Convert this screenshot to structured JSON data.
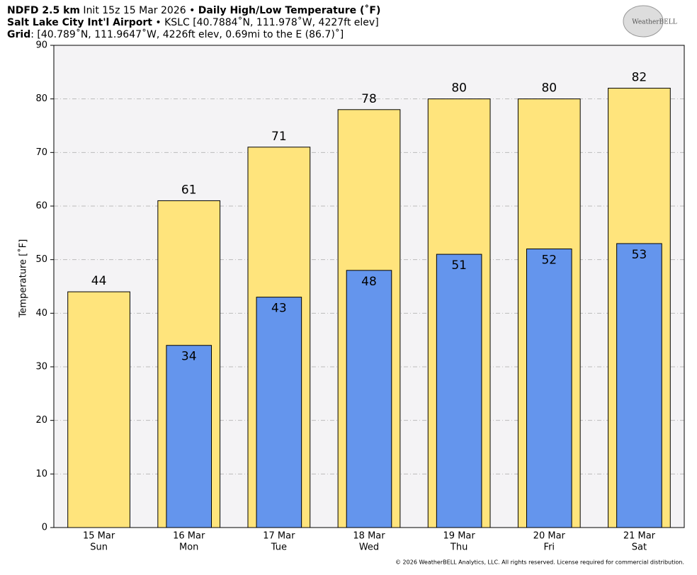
{
  "chart_data": {
    "type": "bar",
    "title_lines": [
      [
        "NDFD 2.5 km",
        " Init 15z 15 Mar 2026 • ",
        "Daily High/Low Temperature (˚F)"
      ],
      [
        "Salt Lake City Int'l Airport",
        " • KSLC [40.7884˚N, 111.978˚W, 4227ft elev]"
      ],
      [
        "Grid",
        ": [40.789˚N, 111.9647˚W, 4226ft elev, 0.69mi to the E (86.7)˚]"
      ]
    ],
    "logo": "WeatherBELL",
    "y_label": "Temperature [˚F]",
    "copyright": "© 2026 WeatherBELL Analytics, LLC. All rights reserved. License required for commercial distribution.",
    "categories": [
      "15 Mar",
      "16 Mar",
      "17 Mar",
      "18 Mar",
      "19 Mar",
      "20 Mar",
      "21 Mar"
    ],
    "weekdays": [
      "Sun",
      "Mon",
      "Tue",
      "Wed",
      "Thu",
      "Fri",
      "Sat"
    ],
    "series": [
      {
        "color": "#ffe47c",
        "values": [
          44,
          61,
          71,
          78,
          80,
          80,
          82
        ]
      },
      {
        "color": "#6495ed",
        "values": [
          null,
          34,
          43,
          48,
          51,
          52,
          53
        ]
      }
    ],
    "ylim": [
      0,
      90
    ],
    "yticks": [
      0,
      10,
      20,
      30,
      40,
      50,
      60,
      70,
      80,
      90
    ],
    "grid": true
  }
}
